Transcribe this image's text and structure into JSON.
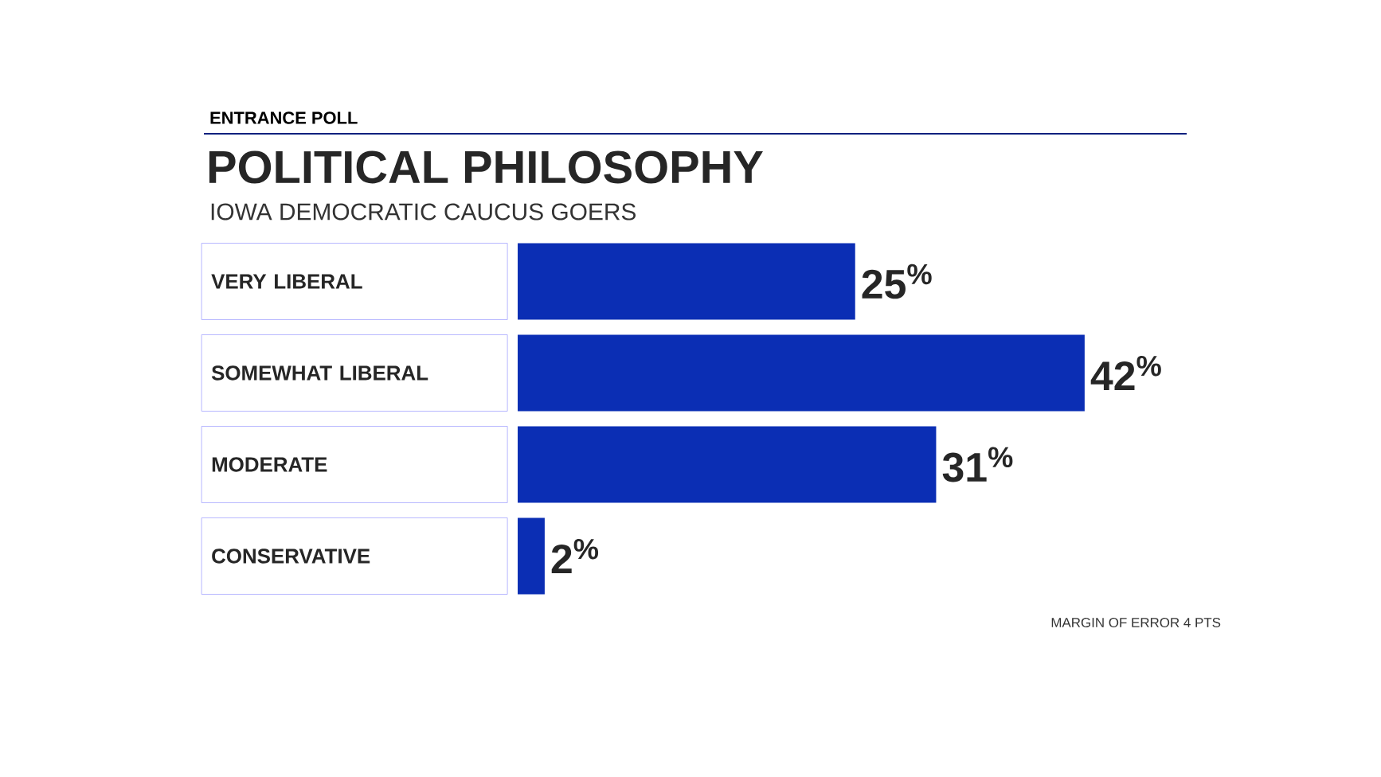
{
  "chart_data": {
    "type": "bar",
    "orientation": "horizontal",
    "title": "POLITICAL PHILOSOPHY",
    "subtitle": "IOWA DEMOCRATIC CAUCUS GOERS",
    "annotations": [
      "ENTRANCE POLL",
      "MARGIN OF ERROR 4 PTS"
    ],
    "categories": [
      "VERY LIBERAL",
      "SOMEWHAT LIBERAL",
      "MODERATE",
      "CONSERVATIVE"
    ],
    "values": [
      25,
      42,
      31,
      2
    ],
    "value_labels": [
      "25$^{%}$",
      "42$^{%}$",
      "31$^{%}$",
      "2$^{%}$"
    ],
    "color": "#0b2eb4"
  }
}
